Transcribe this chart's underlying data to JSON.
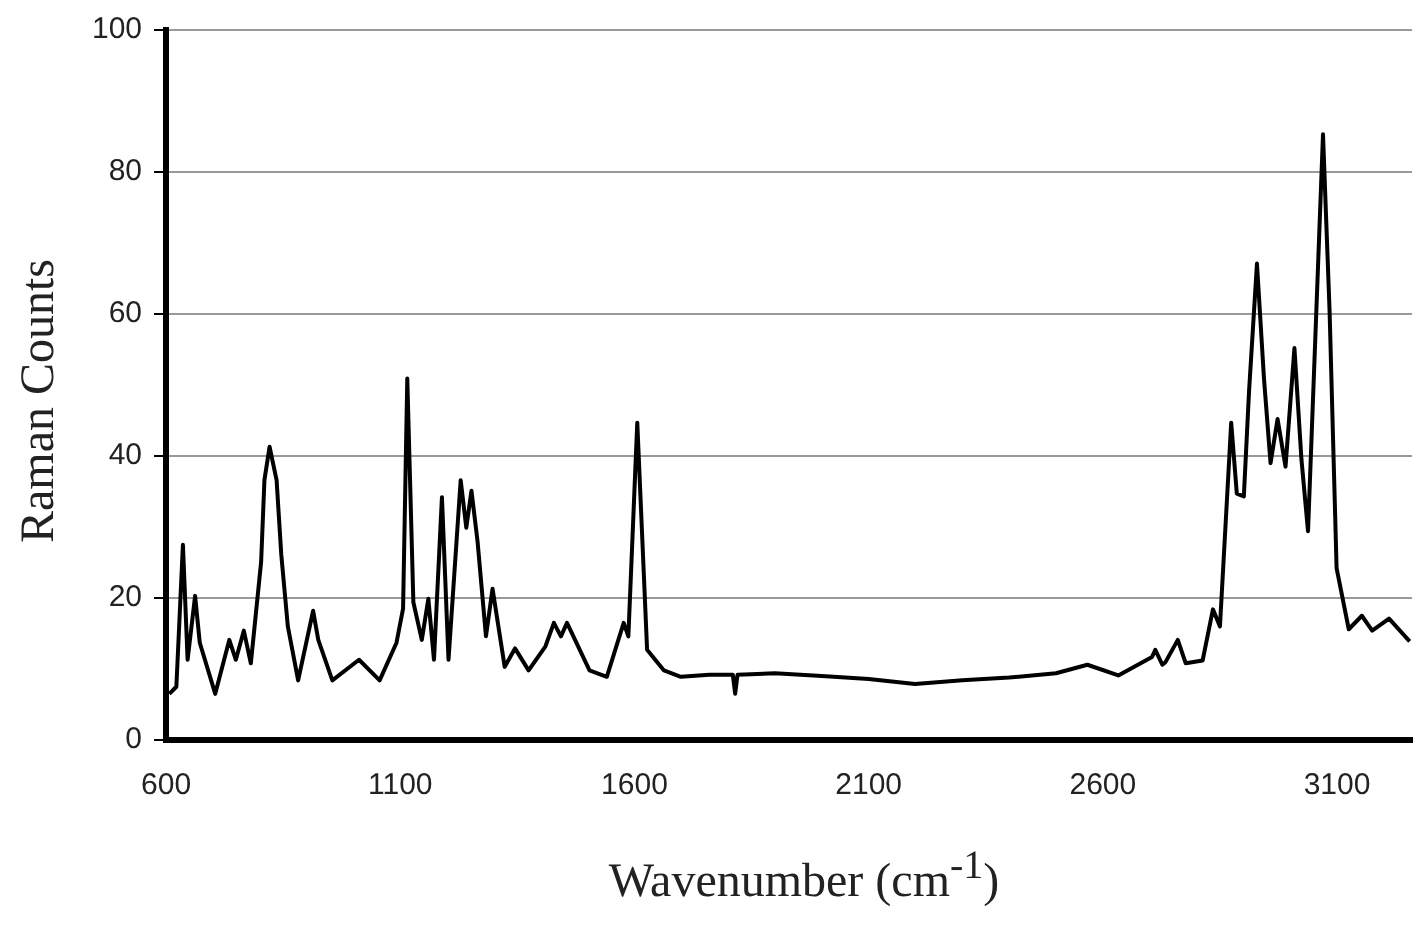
{
  "chart_data": {
    "type": "line",
    "xlabel": "Wavenumber (cm$^{-1}$)",
    "ylabel": "Raman Counts",
    "xlim": [
      600,
      3260
    ],
    "xticks": [
      600,
      1100,
      1600,
      2100,
      2600,
      3100
    ],
    "ylim": [
      0,
      100
    ],
    "yticks": [
      0,
      20,
      40,
      60,
      80,
      100
    ],
    "grid": "y",
    "legend": false,
    "marker": "none",
    "line_style": "solid",
    "series": [
      {
        "color": "#000000",
        "x": [
          607,
          622,
          636,
          646,
          662,
          672,
          705,
          735,
          749,
          766,
          781,
          803,
          810,
          821,
          836,
          846,
          860,
          882,
          914,
          925,
          955,
          1012,
          1056,
          1092,
          1106,
          1115,
          1128,
          1146,
          1160,
          1172,
          1189,
          1203,
          1229,
          1241,
          1252,
          1265,
          1283,
          1297,
          1323,
          1345,
          1374,
          1410,
          1428,
          1443,
          1456,
          1504,
          1541,
          1577,
          1587,
          1606,
          1627,
          1663,
          1699,
          1760,
          1810,
          1815,
          1820,
          1900,
          2000,
          2100,
          2199,
          2300,
          2400,
          2500,
          2567,
          2633,
          2705,
          2712,
          2727,
          2734,
          2760,
          2777,
          2813,
          2835,
          2850,
          2874,
          2886,
          2901,
          2912,
          2929,
          2944,
          2958,
          2973,
          2990,
          3009,
          3024,
          3038,
          3070,
          3084,
          3099,
          3125,
          3153,
          3175,
          3211,
          3255
        ],
        "values": [
          6.5,
          7.5,
          27.5,
          11.3,
          20.3,
          13.7,
          6.5,
          14.1,
          11.3,
          15.4,
          10.8,
          25.1,
          36.6,
          41.3,
          36.6,
          26.1,
          16,
          8.4,
          18.2,
          14.1,
          8.4,
          11.3,
          8.4,
          13.7,
          18.5,
          50.9,
          19.4,
          14.1,
          19.9,
          11.3,
          34.2,
          11.3,
          36.6,
          29.9,
          35.1,
          28,
          14.6,
          21.3,
          10.3,
          12.9,
          9.8,
          13.2,
          16.5,
          14.6,
          16.5,
          9.8,
          8.9,
          16.5,
          14.6,
          44.7,
          12.7,
          9.8,
          8.9,
          9.2,
          9.2,
          6.5,
          9.2,
          9.4,
          9.0,
          8.6,
          7.9,
          8.4,
          8.8,
          9.4,
          10.6,
          9.1,
          11.7,
          12.7,
          10.6,
          11,
          14.1,
          10.8,
          11.2,
          18.4,
          16,
          44.7,
          34.7,
          34.3,
          49,
          67.1,
          50.9,
          39,
          45.2,
          38.5,
          55.2,
          39.5,
          29.4,
          85.3,
          60.5,
          24.2,
          15.6,
          17.5,
          15.4,
          17.1,
          13.9
        ]
      }
    ]
  }
}
